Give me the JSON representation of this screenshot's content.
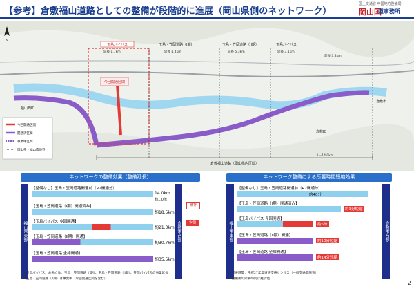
{
  "header": {
    "title": "【参考】倉敷福山道路としての整備が段階的に進展（岡山県側のネットワーク）",
    "logo_small": "国土交通省 中国地方整備局",
    "logo_main": "岡山国",
    "logo_sub": "道事務所"
  },
  "map": {
    "labels": {
      "tamashima_bypass": "玉島バイパス",
      "fukuyama_1": "玉島・笠岡道路（I期）",
      "fukuyama_2": "玉島・笠岡道路（II期）",
      "tamashima_bypass_2": "玉島バイパス",
      "kurashiki_city": "倉敷市",
      "kasaoka_city": "笠岡市",
      "fukuyama_ic": "福山西IC",
      "kurashiki_ic": "倉敷IC",
      "total_label": "倉敷福山道路（岡山県内区間）",
      "total_len": "L=14.0km",
      "tamashima_len": "延長 1.7km",
      "sec_len_1": "延長 4.4km",
      "sec_len_2": "延長 5.3km",
      "sec_len_3": "延長 3.1km",
      "hanagasaki": "延長 3.8km",
      "coast_label": "主要渋滞箇所",
      "red_label": "今回開通区間"
    },
    "legend": [
      "今回開通区間",
      "開通済区間",
      "事業中区間",
      "岡山県・福山市境界"
    ]
  },
  "left_panel": {
    "head": "ネットワークの整備効果（整備延長）",
    "side": "福山市東部",
    "side_right": "倉敷市西部",
    "rows": [
      {
        "label": "【整備なし】玉島・笠岡道路開通前（R2開通分）",
        "value": "14.0km",
        "sub": "約1.0倍"
      },
      {
        "label": "【玉島・笠岡道路（I期）開通済み】",
        "value": "約18.5km",
        "sub": ""
      },
      {
        "label": "【玉島バイパス 今回開通】",
        "value": "約21.3km",
        "sub": ""
      },
      {
        "label": "【玉島・笠岡道路（II期）開通】",
        "value": "約30.7km",
        "sub": ""
      },
      {
        "label": "【玉島・笠岡道路 全線開通】",
        "value": "約35.5km",
        "sub": ""
      }
    ],
    "badge_red": "今回",
    "badge_outline": "既存",
    "notes": [
      "※玉島バイパス、倉敷立体、玉島・笠岡道路（I期）、玉島・笠岡道路（II期）、笠岡バイパスの事業延長",
      "※玉島・笠岡道路（II期）は事業中（今回開通区間を含む）"
    ]
  },
  "right_panel": {
    "head": "ネットワーク整備による所要時間短縮効果",
    "side": "福山市東部",
    "side_right": "倉敷市西部",
    "rows": [
      {
        "label": "【整備なし】玉島・笠岡道路開通前（R2開通分）",
        "value": "約40分"
      },
      {
        "label": "【玉島・笠岡道路（I期）開通済み】",
        "value": "約3分短縮"
      },
      {
        "label": "【玉島バイパス 今回開通】",
        "value": "約6分"
      },
      {
        "label": "【玉島・笠岡道路（II期）開通】",
        "value": "約10分短縮"
      },
      {
        "label": "【玉島・笠岡道路 全線開通】",
        "value": "約14分短縮"
      }
    ],
    "notes": [
      "※所要時間：平成27年度道路交通センサス（一般交通量調査）",
      "※整備後の所要時間は推計値"
    ]
  },
  "page_number": "2"
}
